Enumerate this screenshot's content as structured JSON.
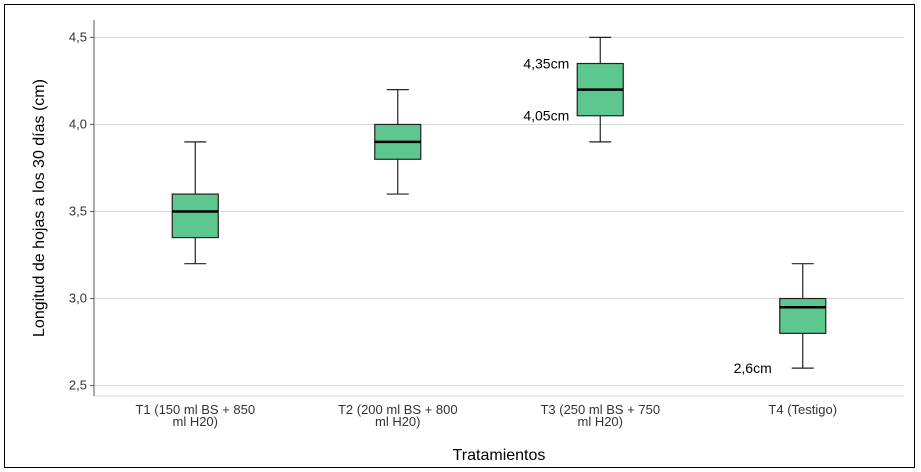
{
  "chart_data": {
    "type": "boxplot",
    "xlabel": "Tratamientos",
    "ylabel": "Longitud de hojas a los 30 días (cm)",
    "ylim": [
      2.44,
      4.6
    ],
    "yticks": [
      2.5,
      3.0,
      3.5,
      4.0,
      4.5
    ],
    "ytick_labels": [
      "2,5",
      "3,0",
      "3,5",
      "4,0",
      "4,5"
    ],
    "grid": true,
    "box_color": "#5cc78f",
    "categories": [
      [
        "T1 (150 ml BS + 850",
        "ml H20)"
      ],
      [
        "T2 (200 ml BS + 800",
        "ml H20)"
      ],
      [
        "T3 (250 ml BS + 750",
        "ml H20)"
      ],
      [
        "T4 (Testigo)"
      ]
    ],
    "boxes": [
      {
        "min": 3.2,
        "q1": 3.35,
        "median": 3.5,
        "q3": 3.6,
        "max": 3.9
      },
      {
        "min": 3.6,
        "q1": 3.8,
        "median": 3.9,
        "q3": 4.0,
        "max": 4.2
      },
      {
        "min": 3.9,
        "q1": 4.05,
        "median": 4.2,
        "q3": 4.35,
        "max": 4.5
      },
      {
        "min": 2.6,
        "q1": 2.8,
        "median": 2.95,
        "q3": 3.0,
        "max": 3.2
      }
    ],
    "annotations": [
      {
        "box": 2,
        "value": 4.35,
        "text": "4,35cm"
      },
      {
        "box": 2,
        "value": 4.05,
        "text": "4,05cm"
      },
      {
        "box": 3,
        "value": 2.6,
        "text": "2,6cm"
      }
    ]
  }
}
